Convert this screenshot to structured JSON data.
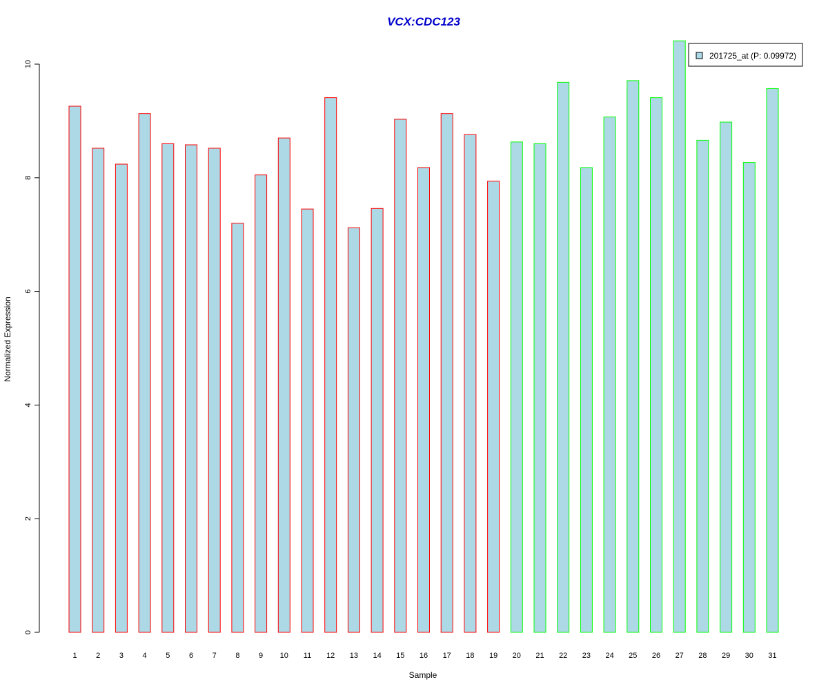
{
  "chart_data": {
    "type": "bar",
    "title": "VCX:CDC123",
    "xlabel": "Sample",
    "ylabel": "Normalized Expression",
    "ylim": [
      0,
      10.5
    ],
    "yticks": [
      0,
      2,
      4,
      6,
      8,
      10
    ],
    "grid": false,
    "legend_placement": "top-right",
    "categories": [
      "1",
      "2",
      "3",
      "4",
      "5",
      "6",
      "7",
      "8",
      "9",
      "10",
      "11",
      "12",
      "13",
      "14",
      "15",
      "16",
      "17",
      "18",
      "19",
      "20",
      "21",
      "22",
      "23",
      "24",
      "25",
      "26",
      "27",
      "28",
      "29",
      "30",
      "31"
    ],
    "series": [
      {
        "name": "201725_at (P: 0.09972)",
        "values": [
          9.26,
          8.52,
          8.24,
          9.13,
          8.6,
          8.58,
          8.52,
          7.2,
          8.05,
          8.7,
          7.45,
          9.41,
          7.12,
          7.46,
          9.03,
          8.18,
          9.13,
          8.76,
          7.94,
          8.63,
          8.6,
          9.68,
          8.18,
          9.07,
          9.71,
          9.41,
          10.41,
          8.66,
          8.98,
          8.27,
          9.57
        ],
        "fill": "#add8e6"
      }
    ],
    "border_colors": [
      "#ff0000",
      "#ff0000",
      "#ff0000",
      "#ff0000",
      "#ff0000",
      "#ff0000",
      "#ff0000",
      "#ff0000",
      "#ff0000",
      "#ff0000",
      "#ff0000",
      "#ff0000",
      "#ff0000",
      "#ff0000",
      "#ff0000",
      "#ff0000",
      "#ff0000",
      "#ff0000",
      "#ff0000",
      "#00ff00",
      "#00ff00",
      "#00ff00",
      "#00ff00",
      "#00ff00",
      "#00ff00",
      "#00ff00",
      "#00ff00",
      "#00ff00",
      "#00ff00",
      "#00ff00",
      "#00ff00"
    ],
    "title_color": "#0000cc"
  }
}
